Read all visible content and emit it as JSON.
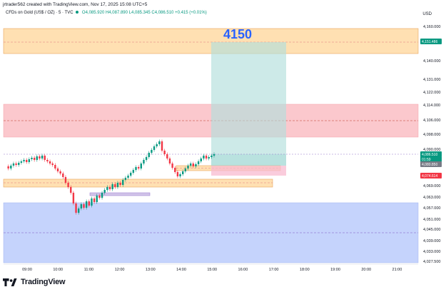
{
  "header": {
    "creator_line": "jrtrader562 created with TradingView.com, Nov 17, 2025 15:08 UTC+5"
  },
  "symbol": {
    "name": "CFDs on Gold (US$ / OZ) · 5 · TVC",
    "open": "O4,085.920",
    "high": "H4,087.890",
    "low": "L4,085.345",
    "close": "C4,086.510",
    "change": "+0.415 (+0.01%)"
  },
  "price_axis": {
    "currency": "USD",
    "ticks": [
      "4,160.000",
      "4,140.000",
      "4,131.000",
      "4,122.000",
      "4,114.000",
      "4,106.000",
      "4,098.000",
      "4,090.000",
      "4,069.000",
      "4,063.000",
      "4,057.000",
      "4,051.000",
      "4,045.000",
      "4,039.000",
      "4,033.000",
      "4,027.500"
    ],
    "badges": [
      {
        "label": "4,151.486",
        "color": "#089981",
        "price": 4151.486
      },
      {
        "label": "4,086.510",
        "color": "#089981",
        "price": 4086.51
      },
      {
        "label": "01:59",
        "color": "#089981",
        "price": 4084.3
      },
      {
        "label": "4,080.850",
        "color": "#787b86",
        "price": 4080.85
      },
      {
        "label": "4,074.614",
        "color": "#f23645",
        "price": 4074.614
      }
    ]
  },
  "time_axis": {
    "ticks": [
      "09:00",
      "10:00",
      "11:00",
      "12:00",
      "13:00",
      "14:00",
      "15:00",
      "16:00",
      "17:00",
      "18:00",
      "19:00",
      "20:00",
      "21:00"
    ]
  },
  "annotation": {
    "target_text": "4150"
  },
  "colors": {
    "up": "#089981",
    "down": "#f23645",
    "supply_zone": "#f8bbd0",
    "orange_zone": "#ffe0b2",
    "demand_zone": "#c5d3fc",
    "profit_zone": "#b2dfdb",
    "loss_zone": "#f8bbd0"
  },
  "footer": {
    "brand": "TradingView"
  }
}
